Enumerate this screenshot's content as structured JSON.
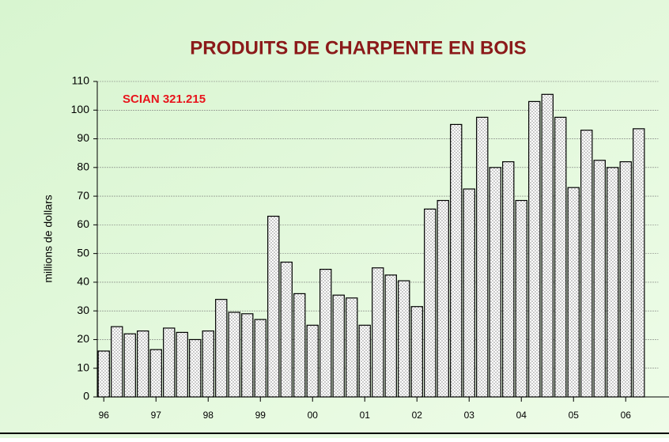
{
  "chart_data": {
    "type": "bar",
    "title": "PRODUITS DE CHARPENTE EN BOIS",
    "annotation": "SCIAN 321.215",
    "y_label": "millions de dollars",
    "categories": [
      "96",
      null,
      null,
      null,
      "97",
      null,
      null,
      null,
      "98",
      null,
      null,
      null,
      "99",
      null,
      null,
      null,
      "00",
      null,
      null,
      null,
      "01",
      null,
      null,
      null,
      "02",
      null,
      null,
      null,
      "03",
      null,
      null,
      null,
      "04",
      null,
      null,
      null,
      "05",
      null,
      null,
      null,
      "06",
      null
    ],
    "values": [
      16,
      24.5,
      22,
      23,
      16.5,
      24,
      22.5,
      20,
      23,
      34,
      29.5,
      29,
      27,
      63,
      47,
      36,
      25,
      44.5,
      35.5,
      34.5,
      25,
      45,
      42.5,
      40.5,
      31.5,
      65.5,
      68.5,
      95,
      72.5,
      97.5,
      80,
      82,
      68.5,
      103,
      105.5,
      97.5,
      73,
      93,
      82.5,
      80,
      82,
      93.5
    ],
    "color": "#8a8a8a",
    "ylim": [
      0,
      110
    ],
    "yticks": [
      0,
      10,
      20,
      30,
      40,
      50,
      60,
      70,
      80,
      90,
      100,
      110
    ],
    "grid": true
  }
}
